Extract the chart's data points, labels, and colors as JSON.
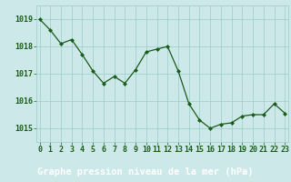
{
  "x": [
    0,
    1,
    2,
    3,
    4,
    5,
    6,
    7,
    8,
    9,
    10,
    11,
    12,
    13,
    14,
    15,
    16,
    17,
    18,
    19,
    20,
    21,
    22,
    23
  ],
  "y": [
    1019.0,
    1018.6,
    1018.1,
    1018.25,
    1017.7,
    1017.1,
    1016.65,
    1016.9,
    1016.65,
    1017.15,
    1017.8,
    1017.9,
    1018.0,
    1017.1,
    1015.9,
    1015.3,
    1015.0,
    1015.15,
    1015.2,
    1015.45,
    1015.5,
    1015.5,
    1015.9,
    1015.55
  ],
  "ylim": [
    1014.5,
    1019.5
  ],
  "yticks": [
    1015,
    1016,
    1017,
    1018,
    1019
  ],
  "xticks": [
    0,
    1,
    2,
    3,
    4,
    5,
    6,
    7,
    8,
    9,
    10,
    11,
    12,
    13,
    14,
    15,
    16,
    17,
    18,
    19,
    20,
    21,
    22,
    23
  ],
  "xlabel": "Graphe pression niveau de la mer (hPa)",
  "line_color": "#1a5c1a",
  "marker": "D",
  "marker_size": 2.0,
  "bg_color": "#cce8e8",
  "grid_color": "#99cccc",
  "tick_label_color": "#1a5c1a",
  "xlabel_color": "#1a5c1a",
  "xlabel_fontsize": 7.5,
  "tick_fontsize": 6.0,
  "bottom_bg": "#2d7a2d",
  "bottom_text_color": "#ffffff"
}
